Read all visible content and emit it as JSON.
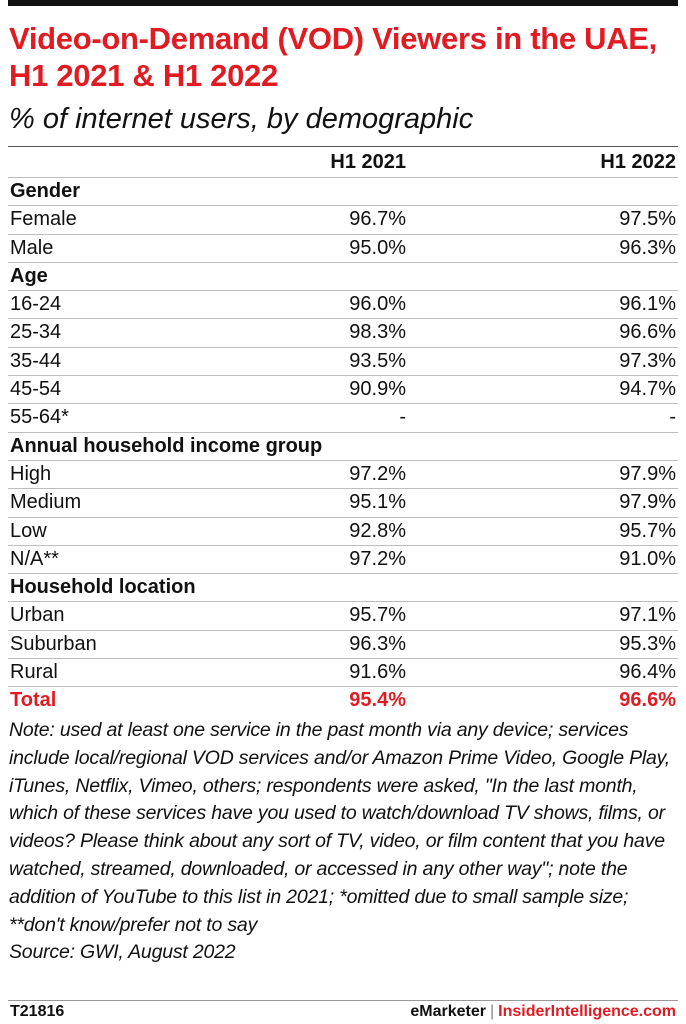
{
  "title": "Video-on-Demand (VOD) Viewers in the UAE, H1 2021 & H1 2022",
  "subtitle": "% of internet users, by demographic",
  "columns": [
    "",
    "H1 2021",
    "H1 2022"
  ],
  "chart_data": {
    "type": "table",
    "title": "Video-on-Demand (VOD) Viewers in the UAE, H1 2021 & H1 2022",
    "subtitle": "% of internet users, by demographic",
    "columns": [
      "H1 2021",
      "H1 2022"
    ],
    "rows": [
      {
        "kind": "group",
        "label": "Gender"
      },
      {
        "kind": "data",
        "label": "Female",
        "h1_2021": "96.7%",
        "h1_2022": "97.5%"
      },
      {
        "kind": "data",
        "label": "Male",
        "h1_2021": "95.0%",
        "h1_2022": "96.3%"
      },
      {
        "kind": "group",
        "label": "Age"
      },
      {
        "kind": "data",
        "label": "16-24",
        "h1_2021": "96.0%",
        "h1_2022": "96.1%"
      },
      {
        "kind": "data",
        "label": "25-34",
        "h1_2021": "98.3%",
        "h1_2022": "96.6%"
      },
      {
        "kind": "data",
        "label": "35-44",
        "h1_2021": "93.5%",
        "h1_2022": "97.3%"
      },
      {
        "kind": "data",
        "label": "45-54",
        "h1_2021": "90.9%",
        "h1_2022": "94.7%"
      },
      {
        "kind": "data",
        "label": "55-64*",
        "h1_2021": "-",
        "h1_2022": "-"
      },
      {
        "kind": "group",
        "label": "Annual household income group"
      },
      {
        "kind": "data",
        "label": "High",
        "h1_2021": "97.2%",
        "h1_2022": "97.9%"
      },
      {
        "kind": "data",
        "label": "Medium",
        "h1_2021": "95.1%",
        "h1_2022": "97.9%"
      },
      {
        "kind": "data",
        "label": "Low",
        "h1_2021": "92.8%",
        "h1_2022": "95.7%"
      },
      {
        "kind": "data",
        "label": "N/A**",
        "h1_2021": "97.2%",
        "h1_2022": "91.0%"
      },
      {
        "kind": "group",
        "label": "Household location"
      },
      {
        "kind": "data",
        "label": "Urban",
        "h1_2021": "95.7%",
        "h1_2022": "97.1%"
      },
      {
        "kind": "data",
        "label": "Suburban",
        "h1_2021": "96.3%",
        "h1_2022": "95.3%"
      },
      {
        "kind": "data",
        "label": "Rural",
        "h1_2021": "91.6%",
        "h1_2022": "96.4%"
      },
      {
        "kind": "total",
        "label": "Total",
        "h1_2021": "95.4%",
        "h1_2022": "96.6%"
      }
    ]
  },
  "note": "Note: used at least one service in the past month via any device; services include local/regional VOD services and/or Amazon Prime Video, Google Play, iTunes, Netflix, Vimeo, others; respondents were asked, \"In the last month, which of these services have you used to watch/download TV shows, films, or videos? Please think about any sort of TV, video, or film content that you have watched, streamed, downloaded, or accessed in any other way\"; note the addition of YouTube to this list in 2021; *omitted due to small sample size; **don't know/prefer not to say",
  "source": "Source: GWI, August 2022",
  "footer": {
    "chart_id": "T21816",
    "brand_left": "eMarketer",
    "separator": "|",
    "brand_right": "InsiderIntelligence.com"
  },
  "colors": {
    "accent": "#e01b22",
    "text": "#111111",
    "rule": "#bdbdbd"
  }
}
